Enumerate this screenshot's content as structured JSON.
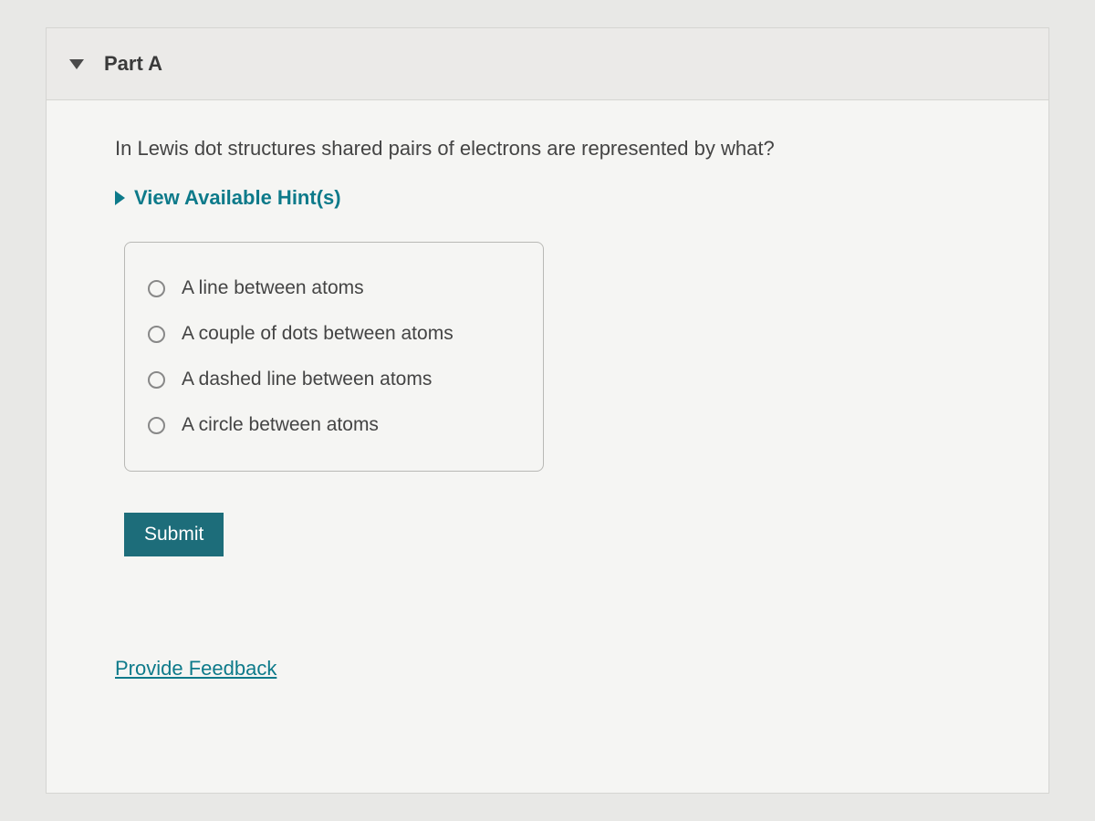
{
  "part": {
    "title": "Part A"
  },
  "question": {
    "text": "In Lewis dot structures shared pairs of electrons are represented by what?"
  },
  "hints": {
    "label": "View Available Hint(s)"
  },
  "options": [
    {
      "label": "A line between atoms"
    },
    {
      "label": "A couple of dots between atoms"
    },
    {
      "label": "A dashed line between atoms"
    },
    {
      "label": "A circle between atoms"
    }
  ],
  "buttons": {
    "submit": "Submit"
  },
  "feedback": {
    "label": "Provide Feedback"
  },
  "colors": {
    "accent": "#0d7a8a",
    "submit_bg": "#1d6d7a",
    "page_bg": "#e8e8e6",
    "panel_bg": "#f5f5f3",
    "header_bg": "#ebeae8",
    "border": "#d5d5d2",
    "text": "#444444"
  }
}
